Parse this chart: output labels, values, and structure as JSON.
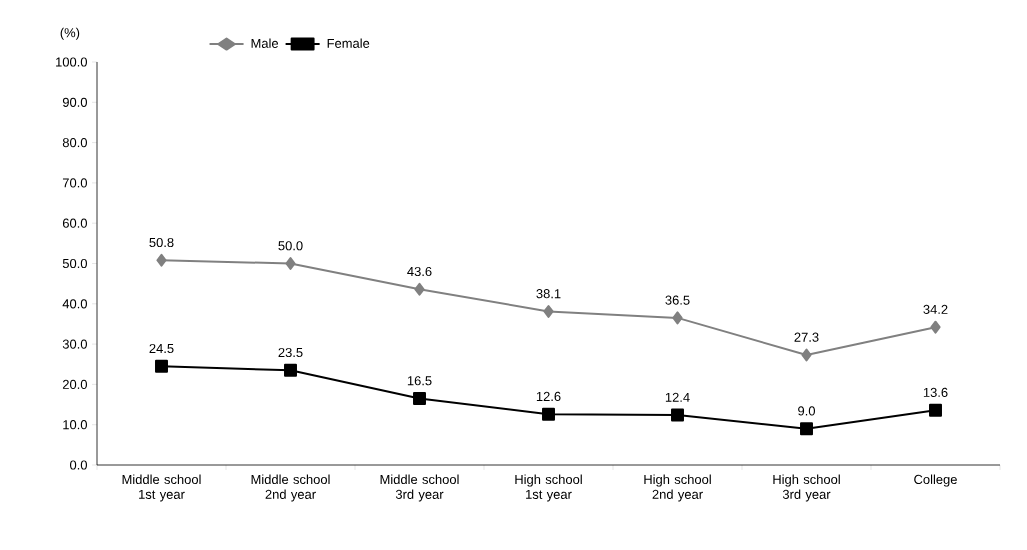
{
  "chart_data": {
    "type": "line",
    "ylabel": "(%)",
    "categories": [
      "Middle school 1st year",
      "Middle school 2nd year",
      "Middle school 3rd year",
      "High school 1st year",
      "High school 2nd year",
      "High school 3rd year",
      "College"
    ],
    "series": [
      {
        "name": "Male",
        "color": "#808080",
        "marker": "diamond",
        "values": [
          50.8,
          50.0,
          43.6,
          38.1,
          36.5,
          27.3,
          34.2
        ],
        "value_labels": [
          "50.8",
          "50.0",
          "43.6",
          "38.1",
          "36.5",
          "27.3",
          "34.2"
        ]
      },
      {
        "name": "Female",
        "color": "#000000",
        "marker": "square",
        "values": [
          24.5,
          23.5,
          16.5,
          12.6,
          12.4,
          9.0,
          13.6
        ],
        "value_labels": [
          "24.5",
          "23.5",
          "16.5",
          "12.6",
          "12.4",
          "9.0",
          "13.6"
        ]
      }
    ],
    "ylim": [
      0,
      100
    ],
    "yticks": [
      {
        "value": 0,
        "label": "0.0"
      },
      {
        "value": 10,
        "label": "10.0"
      },
      {
        "value": 20,
        "label": "20.0"
      },
      {
        "value": 30,
        "label": "30.0"
      },
      {
        "value": 40,
        "label": "40.0"
      },
      {
        "value": 50,
        "label": "50.0"
      },
      {
        "value": 60,
        "label": "60.0"
      },
      {
        "value": 70,
        "label": "70.0"
      },
      {
        "value": 80,
        "label": "80.0"
      },
      {
        "value": 90,
        "label": "90.0"
      },
      {
        "value": 100,
        "label": "100.0"
      }
    ],
    "grid": false,
    "legend": "top",
    "line_style": "solid"
  }
}
